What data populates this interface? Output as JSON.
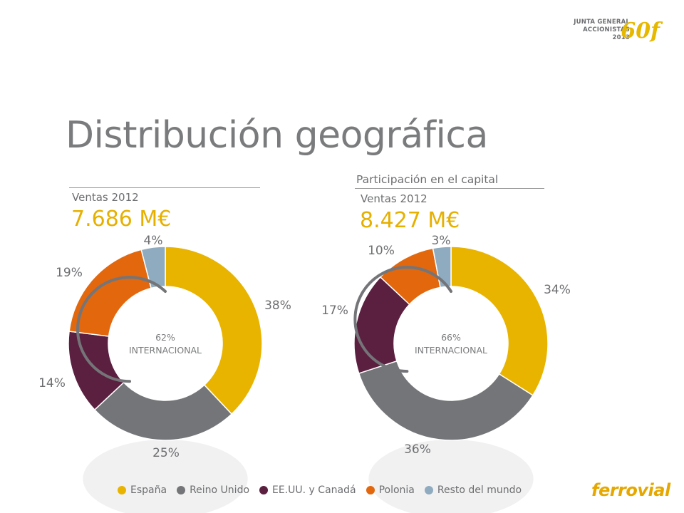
{
  "logo": {
    "line1": "JUNTA GENERAL",
    "line2": "ACCIONISTAS",
    "line3": "2013",
    "mark": "60f"
  },
  "title": "Distribución geográfica",
  "right_header": "Participación en el capital",
  "center_label_right": "INTERNACIONAL",
  "brand": "ferrovial",
  "colors": {
    "espana": "#e8b400",
    "reino_unido": "#747578",
    "eeuu_canada": "#5b1f40",
    "polonia": "#e2670d",
    "resto": "#8fabbf"
  },
  "chart_data": [
    {
      "type": "pie",
      "subtitle": "Ventas 2012",
      "total": "7.686 M€",
      "categories": [
        "España",
        "Reino Unido",
        "EE.UU. y Canadá",
        "Polonia",
        "Resto del mundo"
      ],
      "values": [
        38,
        25,
        14,
        19,
        4
      ],
      "labels": [
        "38%",
        "25%",
        "14%",
        "19%",
        "4%"
      ],
      "center_value": "62%",
      "center_text": "INTERNACIONAL"
    },
    {
      "type": "pie",
      "subtitle": "Ventas 2012",
      "total": "8.427 M€",
      "categories": [
        "España",
        "Reino Unido",
        "EE.UU. y Canadá",
        "Polonia",
        "Resto del mundo"
      ],
      "values": [
        34,
        36,
        17,
        10,
        3
      ],
      "labels": [
        "34%",
        "36%",
        "17%",
        "10%",
        "3%"
      ],
      "center_value": "66%",
      "center_text": "INTERNACIONAL"
    }
  ],
  "legend": [
    {
      "label": "España",
      "color": "#e8b400"
    },
    {
      "label": "Reino Unido",
      "color": "#747578"
    },
    {
      "label": "EE.UU. y Canadá",
      "color": "#5b1f40"
    },
    {
      "label": "Polonia",
      "color": "#e2670d"
    },
    {
      "label": "Resto del mundo",
      "color": "#8fabbf"
    }
  ]
}
